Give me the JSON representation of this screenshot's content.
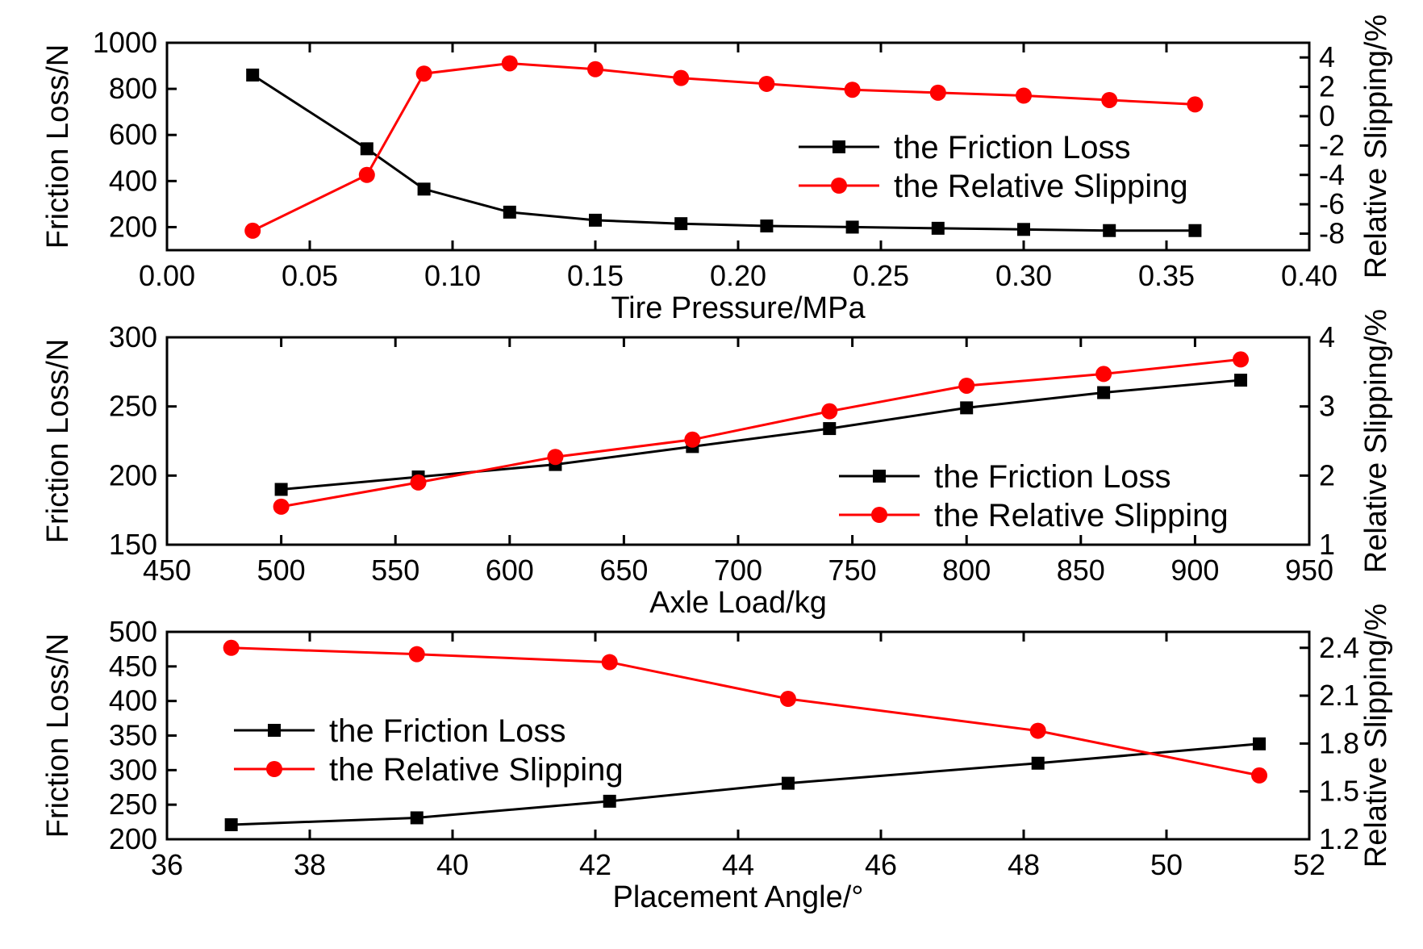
{
  "chart_data": [
    {
      "type": "line",
      "xlabel": "Tire Pressure/MPa",
      "ylabel_left": "Friction Loss/N",
      "ylabel_right": "Relative Slipping/%",
      "xlim": [
        0.0,
        0.4
      ],
      "ylim_left": [
        100,
        1000
      ],
      "ylim_right": [
        -9.125,
        5
      ],
      "xticks": [
        "0.00",
        "0.05",
        "0.10",
        "0.15",
        "0.20",
        "0.25",
        "0.30",
        "0.35",
        "0.40"
      ],
      "xtick_values": [
        0.0,
        0.05,
        0.1,
        0.15,
        0.2,
        0.25,
        0.3,
        0.35,
        0.4
      ],
      "yticks_left": [
        "200",
        "400",
        "600",
        "800",
        "1000"
      ],
      "ytick_values_left": [
        200,
        400,
        600,
        800,
        1000
      ],
      "yticks_right": [
        "-8",
        "-6",
        "-4",
        "-2",
        "0",
        "2",
        "4"
      ],
      "ytick_values_right": [
        -8,
        -6,
        -4,
        -2,
        0,
        2,
        4
      ],
      "legend_position": "center-right",
      "series": [
        {
          "name": "the Friction Loss",
          "axis": "left",
          "color": "#000000",
          "marker": "square",
          "x": [
            0.03,
            0.07,
            0.09,
            0.12,
            0.15,
            0.18,
            0.21,
            0.24,
            0.27,
            0.3,
            0.33,
            0.36
          ],
          "values": [
            860,
            540,
            365,
            265,
            230,
            215,
            205,
            200,
            195,
            190,
            185,
            185
          ]
        },
        {
          "name": "the Relative Slipping",
          "axis": "right",
          "color": "#ff0000",
          "marker": "circle",
          "x": [
            0.03,
            0.07,
            0.09,
            0.12,
            0.15,
            0.18,
            0.21,
            0.24,
            0.27,
            0.3,
            0.33,
            0.36
          ],
          "values": [
            -7.8,
            -4.0,
            2.9,
            3.6,
            3.2,
            2.6,
            2.2,
            1.8,
            1.6,
            1.4,
            1.1,
            0.8
          ]
        }
      ]
    },
    {
      "type": "line",
      "xlabel": "Axle Load/kg",
      "ylabel_left": "Friction Loss/N",
      "ylabel_right": "Relative Slipping/%",
      "xlim": [
        450,
        950
      ],
      "ylim_left": [
        150,
        300
      ],
      "ylim_right": [
        1,
        4
      ],
      "xticks": [
        "450",
        "500",
        "550",
        "600",
        "650",
        "700",
        "750",
        "800",
        "850",
        "900",
        "950"
      ],
      "xtick_values": [
        450,
        500,
        550,
        600,
        650,
        700,
        750,
        800,
        850,
        900,
        950
      ],
      "yticks_left": [
        "150",
        "200",
        "250",
        "300"
      ],
      "ytick_values_left": [
        150,
        200,
        250,
        300
      ],
      "yticks_right": [
        "1",
        "2",
        "3",
        "4"
      ],
      "ytick_values_right": [
        1,
        2,
        3,
        4
      ],
      "legend_position": "bottom-right",
      "series": [
        {
          "name": "the Friction Loss",
          "axis": "left",
          "color": "#000000",
          "marker": "square",
          "x": [
            500,
            560,
            620,
            680,
            740,
            800,
            860,
            920
          ],
          "values": [
            190,
            199,
            208,
            221,
            234,
            249,
            260,
            269
          ]
        },
        {
          "name": "the Relative Slipping",
          "axis": "right",
          "color": "#ff0000",
          "marker": "circle",
          "x": [
            500,
            560,
            620,
            680,
            740,
            800,
            860,
            920
          ],
          "values": [
            1.55,
            1.9,
            2.27,
            2.52,
            2.93,
            3.3,
            3.47,
            3.68
          ]
        }
      ]
    },
    {
      "type": "line",
      "xlabel": "Placement Angle/°",
      "ylabel_left": "Friction Loss/N",
      "ylabel_right": "Relative Slipping/%",
      "xlim": [
        36,
        52
      ],
      "ylim_left": [
        200,
        500
      ],
      "ylim_right": [
        1.2,
        2.5
      ],
      "xticks": [
        "36",
        "38",
        "40",
        "42",
        "44",
        "46",
        "48",
        "50",
        "52"
      ],
      "xtick_values": [
        36,
        38,
        40,
        42,
        44,
        46,
        48,
        50,
        52
      ],
      "yticks_left": [
        "200",
        "250",
        "300",
        "350",
        "400",
        "450",
        "500"
      ],
      "ytick_values_left": [
        200,
        250,
        300,
        350,
        400,
        450,
        500
      ],
      "yticks_right": [
        "1.2",
        "1.5",
        "1.8",
        "2.1",
        "2.4"
      ],
      "ytick_values_right": [
        1.2,
        1.5,
        1.8,
        2.1,
        2.4
      ],
      "legend_position": "center-left",
      "series": [
        {
          "name": "the Friction Loss",
          "axis": "left",
          "color": "#000000",
          "marker": "square",
          "x": [
            36.9,
            39.5,
            42.2,
            44.7,
            48.2,
            51.3
          ],
          "values": [
            221,
            231,
            255,
            281,
            310,
            338
          ]
        },
        {
          "name": "the Relative Slipping",
          "axis": "right",
          "color": "#ff0000",
          "marker": "circle",
          "x": [
            36.9,
            39.5,
            42.2,
            44.7,
            48.2,
            51.3
          ],
          "values": [
            2.4,
            2.36,
            2.31,
            2.08,
            1.88,
            1.6
          ]
        }
      ]
    }
  ]
}
